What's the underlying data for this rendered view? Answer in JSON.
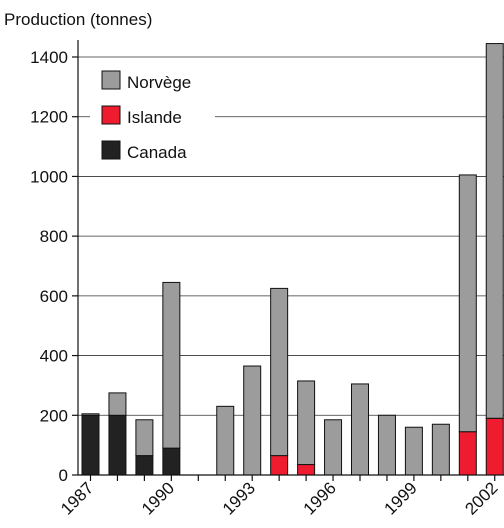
{
  "chart_data": {
    "type": "bar",
    "stacked": true,
    "title": "",
    "ylabel": "Production (tonnes)",
    "xlabel": "",
    "ylim": [
      0,
      1400
    ],
    "yticks": [
      0,
      200,
      400,
      600,
      800,
      1000,
      1200,
      1400
    ],
    "categories": [
      1987,
      1988,
      1989,
      1990,
      1991,
      1992,
      1993,
      1994,
      1995,
      1996,
      1997,
      1998,
      1999,
      2000,
      2001,
      2002
    ],
    "xtick_labels": [
      "1987",
      "1990",
      "1993",
      "1996",
      "1999",
      "2002"
    ],
    "xtick_years": [
      1987,
      1990,
      1993,
      1996,
      1999,
      2002
    ],
    "grid": "horizontal",
    "legend_position": "top-left",
    "series": [
      {
        "name": "Canada",
        "color": "#222222",
        "values": [
          200,
          200,
          65,
          90,
          0,
          0,
          0,
          0,
          0,
          0,
          0,
          0,
          0,
          0,
          0,
          0
        ]
      },
      {
        "name": "Islande",
        "color": "#ee1c2e",
        "values": [
          0,
          0,
          0,
          0,
          0,
          0,
          0,
          65,
          35,
          0,
          0,
          0,
          0,
          0,
          145,
          190
        ]
      },
      {
        "name": "Norvège",
        "color": "#9c9c9c",
        "values": [
          5,
          75,
          120,
          555,
          0,
          230,
          365,
          560,
          280,
          185,
          305,
          200,
          160,
          170,
          860,
          1255
        ]
      }
    ],
    "legend_order": [
      "Norvège",
      "Islande",
      "Canada"
    ]
  }
}
